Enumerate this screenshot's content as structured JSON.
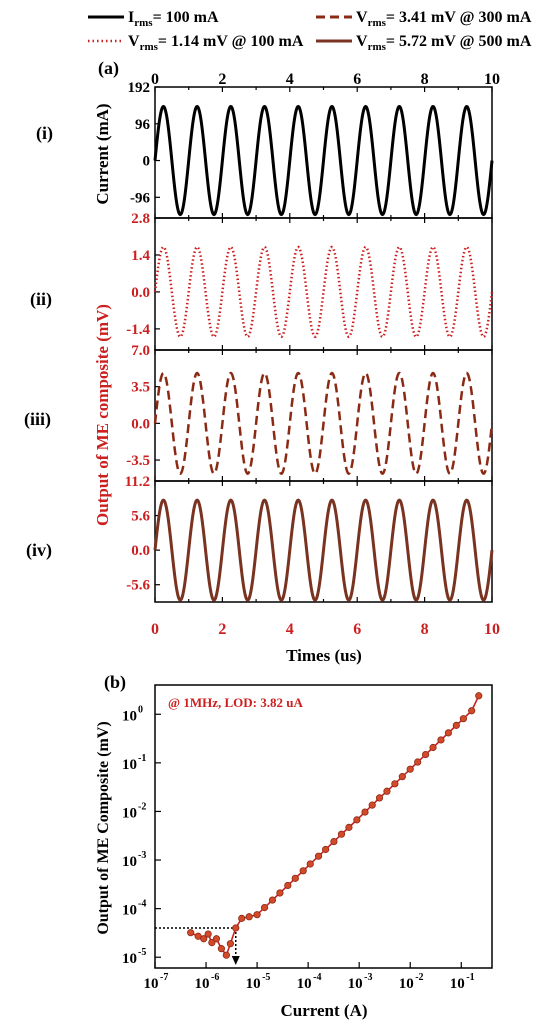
{
  "colors": {
    "black": "#000000",
    "red": "#cc1f1f",
    "dark_red": "#8b2a14",
    "brown": "#7a3320"
  },
  "legend": [
    {
      "main": "I",
      "sub": "rms",
      "rest": "= 100 mA",
      "style": "solid-black"
    },
    {
      "main": "V",
      "sub": "rms",
      "rest": "= 3.41 mV @ 300 mA",
      "style": "dash-darkred"
    },
    {
      "main": "V",
      "sub": "rms",
      "rest": "= 1.14 mV @ 100 mA",
      "style": "dot-red"
    },
    {
      "main": "V",
      "sub": "rms",
      "rest": "= 5.72 mV @ 500 mA",
      "style": "solid-brown"
    }
  ],
  "panel_a": {
    "label": "(a)",
    "roman_labels": [
      "(i)",
      "(ii)",
      "(iii)",
      "(iv)"
    ],
    "ylabel_current": "Current (mA)",
    "ylabel_output": "Output of ME composite (mV)",
    "xlabel": "Times (us)",
    "x_ticks": [
      "0",
      "2",
      "4",
      "6",
      "8",
      "10"
    ]
  },
  "panel_b": {
    "label": "(b)",
    "annotation": "@ 1MHz, LOD: 3.82 uA",
    "ylabel": "Output of ME Composite (mV)",
    "xlabel": "Current (A)"
  },
  "chart_data": [
    {
      "type": "line",
      "panel": "a-i",
      "xlim": [
        0,
        10
      ],
      "ylim": [
        -150,
        192
      ],
      "y_ticks": [
        192,
        96,
        0,
        -96
      ],
      "y_tick_labels": [
        "192",
        "96",
        "0",
        "-96"
      ],
      "series": [
        {
          "name": "Irms= 100 mA",
          "amplitude": 141,
          "frequency_MHz": 1,
          "phase_deg": 0
        }
      ]
    },
    {
      "type": "line",
      "panel": "a-ii",
      "xlim": [
        0,
        10
      ],
      "ylim": [
        -2.2,
        2.8
      ],
      "y_ticks": [
        2.8,
        1.4,
        0.0,
        -1.4
      ],
      "y_tick_labels": [
        "2.8",
        "1.4",
        "0.0",
        "-1.4"
      ],
      "series": [
        {
          "name": "Vrms= 1.14 mV @ 100 mA",
          "amplitude": 1.7,
          "frequency_MHz": 1,
          "phase_deg": 0
        }
      ]
    },
    {
      "type": "line",
      "panel": "a-iii",
      "xlim": [
        0,
        10
      ],
      "ylim": [
        -5.5,
        7.0
      ],
      "y_ticks": [
        7.0,
        3.5,
        0.0,
        -3.5
      ],
      "y_tick_labels": [
        "7.0",
        "3.5",
        "0.0",
        "-3.5"
      ],
      "series": [
        {
          "name": "Vrms= 3.41 mV @ 300 mA",
          "amplitude": 4.8,
          "frequency_MHz": 1,
          "phase_deg": 0
        }
      ]
    },
    {
      "type": "line",
      "panel": "a-iv",
      "xlim": [
        0,
        10
      ],
      "ylim": [
        -8.4,
        11.2
      ],
      "y_ticks": [
        11.2,
        5.6,
        0.0,
        -5.6
      ],
      "y_tick_labels": [
        "11.2",
        "5.6",
        "0.0",
        "-5.6"
      ],
      "series": [
        {
          "name": "Vrms= 5.72 mV @ 500 mA",
          "amplitude": 8.1,
          "frequency_MHz": 1,
          "phase_deg": 0
        }
      ]
    },
    {
      "type": "line",
      "panel": "b",
      "log_x": true,
      "log_y": true,
      "xlim": [
        1e-07,
        0.4
      ],
      "ylim": [
        6e-06,
        4
      ],
      "x_tick_labels": [
        "10",
        "10",
        "10",
        "10",
        "10",
        "10",
        "10"
      ],
      "x_tick_exponents": [
        "-7",
        "-6",
        "-5",
        "-4",
        "-3",
        "-2",
        "-1"
      ],
      "y_tick_labels": [
        "10",
        "10",
        "10",
        "10",
        "10",
        "10"
      ],
      "y_tick_exponents": [
        "-5",
        "-4",
        "-3",
        "-2",
        "-1",
        "0"
      ],
      "lod_current_A": 3.82e-06,
      "lod_output_mV": 4e-05,
      "series": [
        {
          "name": "Output",
          "x": [
            5e-07,
            7e-07,
            9e-07,
            1.1e-06,
            1.3e-06,
            1.6e-06,
            2e-06,
            2.5e-06,
            3e-06,
            3.82e-06,
            5e-06,
            7e-06,
            1e-05,
            1.4e-05,
            2e-05,
            2.8e-05,
            4e-05,
            5.6e-05,
            8e-05,
            0.00011,
            0.00016,
            0.00022,
            0.00032,
            0.00045,
            0.00063,
            0.0009,
            0.0013,
            0.0018,
            0.0025,
            0.0035,
            0.005,
            0.007,
            0.01,
            0.014,
            0.02,
            0.028,
            0.04,
            0.056,
            0.08,
            0.11,
            0.16,
            0.22
          ],
          "y": [
            3.2e-05,
            2.7e-05,
            2.4e-05,
            3e-05,
            2e-05,
            2.4e-05,
            1.5e-05,
            1.1e-05,
            1.9e-05,
            4e-05,
            6.3e-05,
            6.8e-05,
            7.5e-05,
            0.000105,
            0.00015,
            0.00021,
            0.0003,
            0.00042,
            0.0006,
            0.00083,
            0.0012,
            0.00165,
            0.0024,
            0.0034,
            0.0047,
            0.0067,
            0.0097,
            0.0135,
            0.019,
            0.026,
            0.037,
            0.052,
            0.074,
            0.104,
            0.148,
            0.207,
            0.296,
            0.414,
            0.59,
            0.81,
            1.18,
            2.4
          ]
        }
      ]
    }
  ]
}
